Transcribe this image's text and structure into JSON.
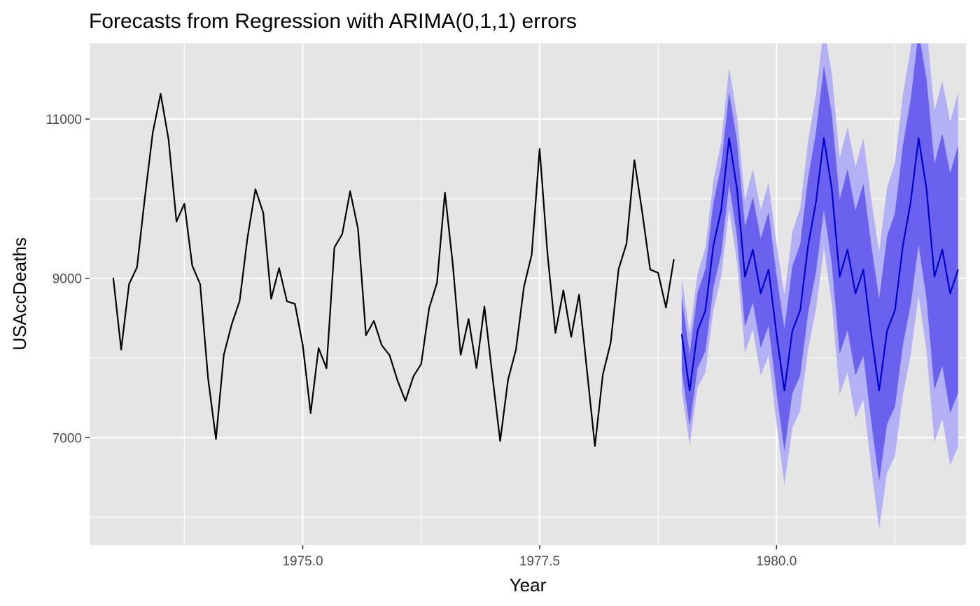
{
  "chart_data": {
    "type": "line",
    "title": "Forecasts from Regression with ARIMA(0,1,1) errors",
    "xlabel": "Year",
    "ylabel": "USAccDeaths",
    "xlim": [
      1972.75,
      1982.0
    ],
    "ylim": [
      5650,
      11950
    ],
    "x_ticks": [
      1975.0,
      1977.5,
      1980.0
    ],
    "x_tick_labels": [
      "1975.0",
      "1977.5",
      "1980.0"
    ],
    "y_ticks": [
      7000,
      9000,
      11000
    ],
    "y_tick_labels": [
      "7000",
      "9000",
      "11000"
    ],
    "grid": true,
    "legend": "none",
    "colors": {
      "panel": "#e5e5e5",
      "grid": "#ffffff",
      "history_line": "#000000",
      "forecast_line": "#0000cc",
      "band_80": "#6a62ee",
      "band_95": "#b3b0f5"
    },
    "history": {
      "start": 1973.0,
      "frequency": 12,
      "values": [
        9007,
        8106,
        8928,
        9137,
        10017,
        10826,
        11317,
        10744,
        9713,
        9938,
        9161,
        8927,
        7750,
        6981,
        8038,
        8422,
        8714,
        9512,
        10120,
        9823,
        8743,
        9129,
        8710,
        8680,
        8162,
        7306,
        8124,
        7870,
        9387,
        9556,
        10093,
        9620,
        8285,
        8466,
        8160,
        8034,
        7717,
        7461,
        7767,
        7925,
        8623,
        8945,
        10078,
        9179,
        8037,
        8488,
        7874,
        8647,
        7792,
        6957,
        7726,
        8106,
        8890,
        9299,
        10625,
        9302,
        8314,
        8850,
        8265,
        8796,
        7836,
        6892,
        7791,
        8192,
        9115,
        9434,
        10484,
        9827,
        9110,
        9070,
        8633,
        9240
      ]
    },
    "forecast": {
      "start": 1979.0,
      "frequency": 12,
      "mean": [
        8300,
        7590,
        8340,
        8600,
        9410,
        9860,
        10760,
        10120,
        9020,
        9360,
        8810,
        9110,
        8300,
        7590,
        8340,
        8600,
        9410,
        9960,
        10760,
        10120,
        9020,
        9360,
        8810,
        9110,
        8300,
        7590,
        8340,
        8600,
        9410,
        9960,
        10760,
        10120,
        9020,
        9360,
        8810,
        9110
      ],
      "lo80": [
        7840,
        7140,
        7870,
        8090,
        8880,
        9310,
        10180,
        9520,
        8390,
        8700,
        8130,
        8400,
        7570,
        6830,
        7550,
        7780,
        8560,
        9080,
        9860,
        9180,
        8050,
        8350,
        7780,
        8030,
        7200,
        6450,
        7170,
        7390,
        8160,
        8670,
        9420,
        8740,
        7600,
        7900,
        7310,
        7560
      ],
      "hi80": [
        8770,
        8050,
        8820,
        9120,
        9950,
        10420,
        11340,
        10720,
        9650,
        10020,
        9500,
        9830,
        9040,
        8370,
        9150,
        9430,
        10260,
        10840,
        11670,
        11060,
        9990,
        10370,
        9850,
        10190,
        9420,
        8740,
        9530,
        9820,
        10670,
        11250,
        12100,
        11500,
        10440,
        10820,
        10320,
        10670
      ],
      "lo95": [
        7590,
        6900,
        7630,
        7820,
        8600,
        9020,
        9870,
        9200,
        8060,
        8360,
        7780,
        8030,
        7180,
        6410,
        7120,
        7340,
        8110,
        8610,
        9380,
        8690,
        7540,
        7820,
        7240,
        7480,
        6620,
        5850,
        6560,
        6770,
        7530,
        8040,
        8780,
        8090,
        6940,
        7240,
        6650,
        6890
      ],
      "hi95": [
        9010,
        8300,
        9060,
        9390,
        10230,
        10710,
        11650,
        11040,
        9980,
        10370,
        9860,
        10200,
        9430,
        8790,
        9580,
        9880,
        10720,
        11320,
        12160,
        11570,
        10510,
        10900,
        10400,
        10760,
        9990,
        9330,
        10140,
        10450,
        11300,
        11890,
        12750,
        12160,
        11100,
        11480,
        10970,
        11330
      ]
    }
  }
}
